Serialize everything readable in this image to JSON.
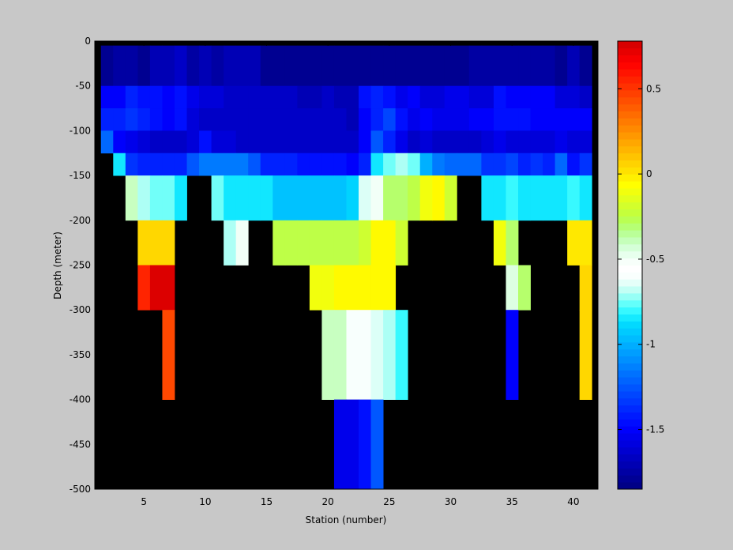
{
  "chart_data": {
    "type": "heatmap",
    "title": "",
    "xlabel": "Station (number)",
    "ylabel": "Depth (meter)",
    "xlim": [
      1,
      42
    ],
    "ylim": [
      -500,
      0
    ],
    "xticks": [
      5,
      10,
      15,
      20,
      25,
      30,
      35,
      40
    ],
    "yticks": [
      0,
      -50,
      -100,
      -150,
      -200,
      -250,
      -300,
      -350,
      -400,
      -450,
      -500
    ],
    "colorbar": {
      "range": [
        -1.85,
        0.78
      ],
      "ticks": [
        0.5,
        0,
        -0.5,
        -1,
        -1.5
      ],
      "colormap": "jet-like (blue → cyan → green → white → yellow → orange → dark red)"
    },
    "mask_color": "#000000",
    "stations": [
      2,
      3,
      4,
      5,
      6,
      7,
      8,
      9,
      10,
      11,
      12,
      13,
      14,
      15,
      16,
      17,
      18,
      19,
      20,
      21,
      22,
      23,
      24,
      25,
      26,
      27,
      28,
      29,
      30,
      31,
      32,
      33,
      34,
      35,
      36,
      37,
      38,
      39,
      40,
      41
    ],
    "depth_bins": [
      {
        "top": 0,
        "bottom": -5
      },
      {
        "top": -5,
        "bottom": -50
      },
      {
        "top": -50,
        "bottom": -75
      },
      {
        "top": -75,
        "bottom": -100
      },
      {
        "top": -100,
        "bottom": -125
      },
      {
        "top": -125,
        "bottom": -150
      },
      {
        "top": -150,
        "bottom": -200
      },
      {
        "top": -200,
        "bottom": -250
      },
      {
        "top": -250,
        "bottom": -300
      },
      {
        "top": -300,
        "bottom": -400
      },
      {
        "top": -400,
        "bottom": -500
      }
    ],
    "rows": [
      [
        null,
        null,
        null,
        null,
        null,
        null,
        null,
        null,
        null,
        null,
        null,
        null,
        null,
        null,
        null,
        null,
        null,
        null,
        null,
        null,
        null,
        null,
        null,
        null,
        null,
        null,
        null,
        null,
        null,
        null,
        null,
        null,
        null,
        null,
        null,
        null,
        null,
        null,
        null,
        null
      ],
      [
        -1.8,
        -1.75,
        -1.75,
        -1.8,
        -1.7,
        -1.7,
        -1.65,
        -1.75,
        -1.7,
        -1.75,
        -1.7,
        -1.7,
        -1.7,
        -1.8,
        -1.8,
        -1.8,
        -1.8,
        -1.8,
        -1.8,
        -1.8,
        -1.8,
        -1.8,
        -1.8,
        -1.8,
        -1.8,
        -1.8,
        -1.8,
        -1.8,
        -1.8,
        -1.8,
        -1.75,
        -1.75,
        -1.75,
        -1.75,
        -1.75,
        -1.75,
        -1.75,
        -1.8,
        -1.7,
        -1.8
      ],
      [
        -1.5,
        -1.5,
        -1.4,
        -1.45,
        -1.45,
        -1.5,
        -1.45,
        -1.55,
        -1.6,
        -1.6,
        -1.65,
        -1.65,
        -1.65,
        -1.65,
        -1.65,
        -1.65,
        -1.7,
        -1.7,
        -1.65,
        -1.7,
        -1.7,
        -1.45,
        -1.4,
        -1.45,
        -1.55,
        -1.5,
        -1.6,
        -1.6,
        -1.55,
        -1.55,
        -1.6,
        -1.6,
        -1.45,
        -1.5,
        -1.5,
        -1.5,
        -1.5,
        -1.6,
        -1.6,
        -1.65
      ],
      [
        -1.4,
        -1.4,
        -1.35,
        -1.4,
        -1.45,
        -1.5,
        -1.45,
        -1.6,
        -1.65,
        -1.65,
        -1.65,
        -1.65,
        -1.65,
        -1.65,
        -1.65,
        -1.65,
        -1.65,
        -1.65,
        -1.65,
        -1.65,
        -1.7,
        -1.5,
        -1.4,
        -1.3,
        -1.45,
        -1.55,
        -1.5,
        -1.55,
        -1.55,
        -1.55,
        -1.5,
        -1.5,
        -1.45,
        -1.45,
        -1.45,
        -1.5,
        -1.5,
        -1.5,
        -1.5,
        -1.5
      ],
      [
        -1.2,
        -1.5,
        -1.55,
        -1.6,
        -1.65,
        -1.65,
        -1.65,
        -1.6,
        -1.45,
        -1.6,
        -1.6,
        -1.65,
        -1.65,
        -1.65,
        -1.65,
        -1.65,
        -1.65,
        -1.65,
        -1.65,
        -1.65,
        -1.65,
        -1.5,
        -1.25,
        -1.4,
        -1.55,
        -1.65,
        -1.6,
        -1.65,
        -1.65,
        -1.65,
        -1.65,
        -1.6,
        -1.55,
        -1.6,
        -1.6,
        -1.6,
        -1.6,
        -1.55,
        -1.6,
        -1.6
      ],
      [
        null,
        -0.85,
        -1.35,
        -1.4,
        -1.4,
        -1.4,
        -1.4,
        -1.25,
        -1.15,
        -1.15,
        -1.15,
        -1.15,
        -1.25,
        -1.4,
        -1.4,
        -1.4,
        -1.45,
        -1.45,
        -1.45,
        -1.45,
        -1.5,
        -1.4,
        -0.85,
        -0.75,
        -0.7,
        -0.75,
        -1.0,
        -1.15,
        -1.2,
        -1.2,
        -1.2,
        -1.35,
        -1.35,
        -1.3,
        -1.4,
        -1.35,
        -1.4,
        -1.2,
        -1.45,
        -1.35
      ],
      [
        null,
        null,
        -0.4,
        -0.7,
        -0.75,
        -0.75,
        -0.85,
        null,
        null,
        -0.75,
        -0.85,
        -0.85,
        -0.85,
        -0.85,
        -0.95,
        -0.95,
        -0.95,
        -0.95,
        -0.95,
        -0.95,
        -0.9,
        -0.65,
        -0.5,
        -0.3,
        -0.3,
        -0.25,
        -0.1,
        -0.05,
        -0.2,
        null,
        null,
        -0.85,
        -0.85,
        -0.8,
        -0.85,
        -0.85,
        -0.85,
        -0.85,
        -0.8,
        -0.85
      ],
      [
        null,
        null,
        null,
        0.05,
        0.05,
        0.05,
        null,
        null,
        null,
        null,
        -0.7,
        -0.5,
        null,
        null,
        -0.25,
        -0.25,
        -0.25,
        -0.25,
        -0.25,
        -0.25,
        -0.25,
        -0.2,
        -0.05,
        -0.05,
        -0.2,
        null,
        null,
        null,
        null,
        null,
        null,
        null,
        -0.1,
        -0.3,
        null,
        null,
        null,
        null,
        0.0,
        0.0
      ],
      [
        null,
        null,
        null,
        0.55,
        0.75,
        0.75,
        null,
        null,
        null,
        null,
        null,
        null,
        null,
        null,
        null,
        null,
        null,
        -0.1,
        -0.1,
        -0.05,
        -0.05,
        -0.05,
        -0.05,
        -0.05,
        null,
        null,
        null,
        null,
        null,
        null,
        null,
        null,
        null,
        -0.45,
        -0.3,
        null,
        null,
        null,
        null,
        0.05
      ],
      [
        null,
        null,
        null,
        null,
        null,
        0.45,
        null,
        null,
        null,
        null,
        null,
        null,
        null,
        null,
        null,
        null,
        null,
        null,
        -0.4,
        -0.4,
        -0.6,
        -0.6,
        -0.65,
        -0.7,
        -0.8,
        null,
        null,
        null,
        null,
        null,
        null,
        null,
        null,
        -1.5,
        null,
        null,
        null,
        null,
        null,
        0.05
      ],
      [
        null,
        null,
        null,
        null,
        null,
        null,
        null,
        null,
        null,
        null,
        null,
        null,
        null,
        null,
        null,
        null,
        null,
        null,
        null,
        -1.55,
        -1.55,
        -1.45,
        -1.25,
        null,
        null,
        null,
        null,
        null,
        null,
        null,
        null,
        null,
        null,
        null,
        null,
        null,
        null,
        null,
        null,
        null
      ]
    ]
  }
}
